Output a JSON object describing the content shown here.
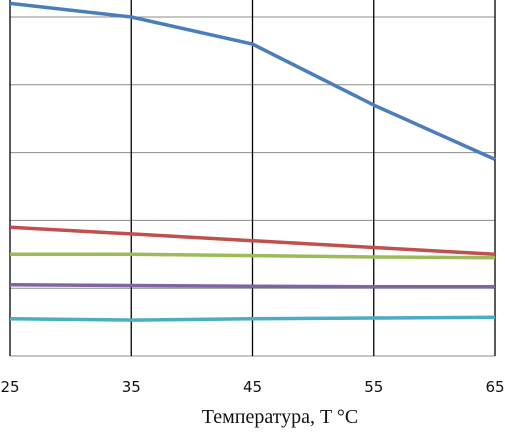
{
  "chart_data": {
    "type": "line",
    "title": "",
    "xlabel": "Температура, T °C",
    "ylabel": "",
    "x": [
      25,
      35,
      45,
      55,
      65
    ],
    "xticks": [
      "25",
      "35",
      "45",
      "55",
      "65"
    ],
    "yrange": [
      0,
      5.25
    ],
    "ygrid": [
      0,
      1,
      2,
      3,
      4,
      5
    ],
    "grid": true,
    "legend": "none",
    "series": [
      {
        "color": "#4a7ebb",
        "values": [
          5.2,
          5.0,
          4.6,
          3.7,
          2.9
        ]
      },
      {
        "color": "#c0504d",
        "values": [
          1.9,
          1.8,
          1.7,
          1.6,
          1.5
        ]
      },
      {
        "color": "#9bbb59",
        "values": [
          1.5,
          1.5,
          1.48,
          1.46,
          1.45
        ]
      },
      {
        "color": "#8064a2",
        "values": [
          1.05,
          1.04,
          1.03,
          1.02,
          1.02
        ]
      },
      {
        "color": "#4bacc6",
        "values": [
          0.55,
          0.53,
          0.55,
          0.56,
          0.57
        ]
      }
    ]
  }
}
